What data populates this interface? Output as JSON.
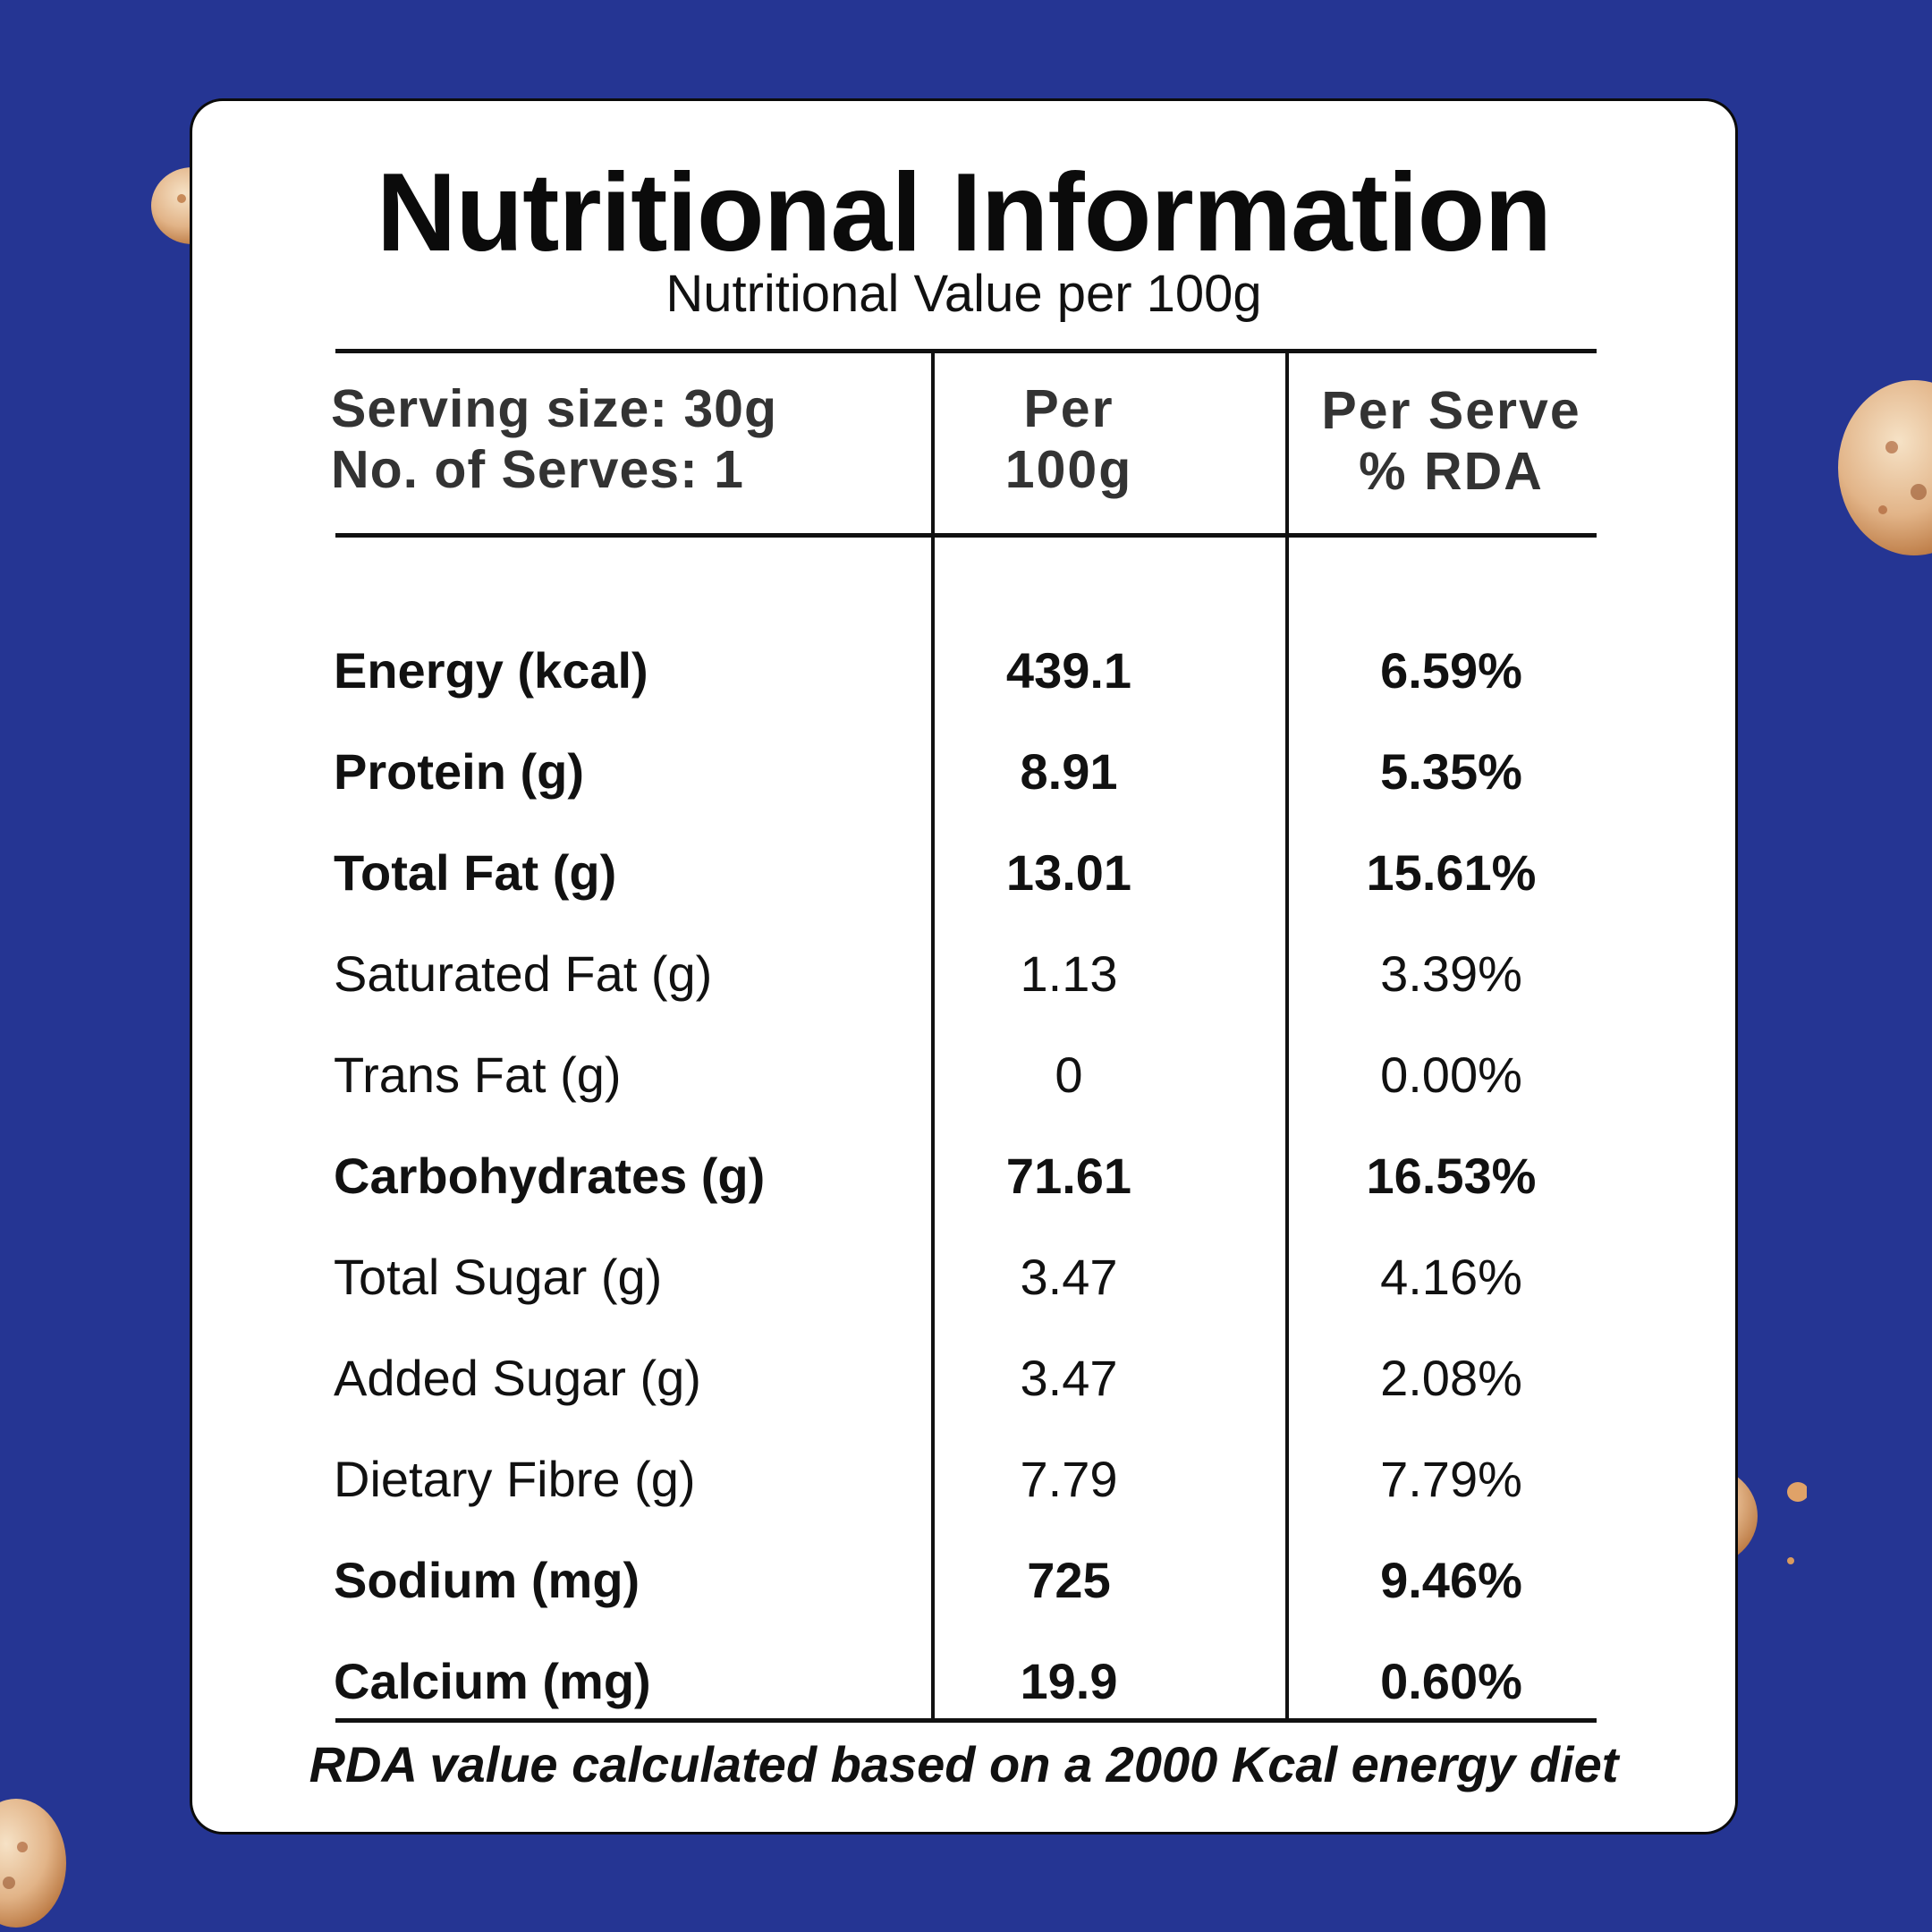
{
  "card": {
    "title": "Nutritional Information",
    "subtitle": "Nutritional Value per 100g"
  },
  "header": {
    "serving_size": "Serving size: 30g",
    "serves": "No. of Serves: 1",
    "per_100g_line1": "Per",
    "per_100g_line2": "100g",
    "per_serve_line1": "Per Serve",
    "per_serve_line2": "% RDA"
  },
  "rows": [
    {
      "name": "Energy (kcal)",
      "per_100g": "439.1",
      "rda": "6.59%",
      "bold": true
    },
    {
      "name": "Protein (g)",
      "per_100g": "8.91",
      "rda": "5.35%",
      "bold": true
    },
    {
      "name": "Total Fat (g)",
      "per_100g": "13.01",
      "rda": "15.61%",
      "bold": true
    },
    {
      "name": "Saturated Fat (g)",
      "per_100g": "1.13",
      "rda": "3.39%",
      "bold": false
    },
    {
      "name": "Trans Fat (g)",
      "per_100g": "0",
      "rda": "0.00%",
      "bold": false
    },
    {
      "name": "Carbohydrates (g)",
      "per_100g": "71.61",
      "rda": "16.53%",
      "bold": true
    },
    {
      "name": "Total Sugar (g)",
      "per_100g": "3.47",
      "rda": "4.16%",
      "bold": false
    },
    {
      "name": "Added Sugar (g)",
      "per_100g": "3.47",
      "rda": "2.08%",
      "bold": false
    },
    {
      "name": "Dietary Fibre (g)",
      "per_100g": "7.79",
      "rda": "7.79%",
      "bold": false
    },
    {
      "name": "Sodium (mg)",
      "per_100g": "725",
      "rda": "9.46%",
      "bold": true
    },
    {
      "name": "Calcium (mg)",
      "per_100g": "19.9",
      "rda": "0.60%",
      "bold": true
    }
  ],
  "footnote": "RDA value calculated based on a 2000 Kcal energy diet",
  "colors": {
    "background": "#253593",
    "card": "#ffffff",
    "text": "#111111",
    "nut": "#e9c49a"
  }
}
